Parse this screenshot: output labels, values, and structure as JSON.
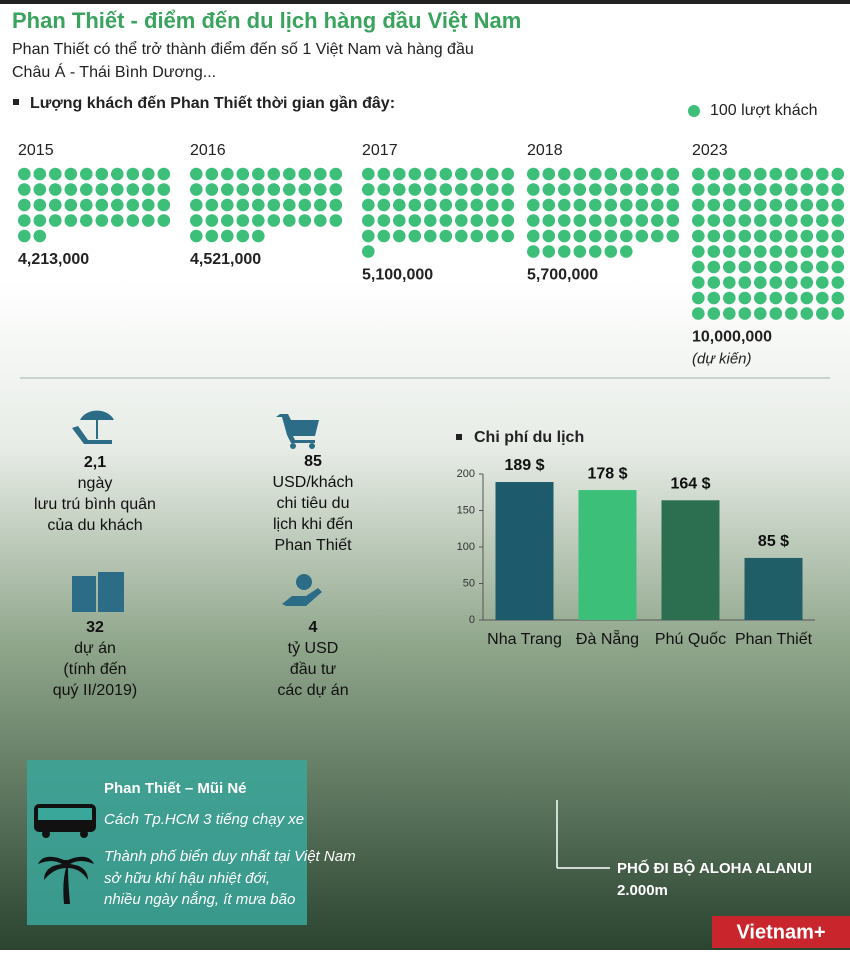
{
  "header": {
    "title": "Phan Thiết - điểm đến du lịch hàng đầu Việt Nam",
    "subtitle": [
      "Phan Thiết có thể trở thành điểm đến số 1 Việt Nam và hàng đầu",
      "Châu Á - Thái Bình Dương..."
    ]
  },
  "visitors": {
    "heading": "Lượng khách đến Phan Thiết thời gian gần đây:",
    "legend": "100 lượt khách",
    "color": "#3dbf7a",
    "years": [
      {
        "year": "2015",
        "value": {
          "value": 4213000,
          "label": "4,213,000"
        }
      },
      {
        "year": "2016",
        "value": {
          "value": 4521000,
          "label": "4,521,000"
        }
      },
      {
        "year": "2017",
        "value": {
          "value": 5100000,
          "label": "5,100,000"
        }
      },
      {
        "year": "2018",
        "value": {
          "value": 5700000,
          "label": "5,700,000"
        }
      },
      {
        "year": "2023",
        "value": {
          "value": 10000000,
          "label": "10,000,000"
        },
        "note": "(dự kiến)"
      }
    ]
  },
  "stats": [
    {
      "value": "2,1",
      "lines": [
        "ngày",
        "lưu trú bình quân",
        "của du khách"
      ]
    },
    {
      "value": "85",
      "lines": [
        "USD/khách",
        "chi tiêu du",
        "lịch khi đến",
        "Phan Thiết"
      ]
    },
    {
      "value": "32",
      "lines": [
        "dự án",
        "(tính đến",
        "quý II/2019)"
      ]
    },
    {
      "value": "4",
      "lines": [
        "tỷ USD",
        "đầu tư",
        "các dự án"
      ]
    }
  ],
  "chart_data": {
    "type": "bar",
    "title": "Chi phí du lịch",
    "categories": [
      "Nha Trang",
      "Đà Nẵng",
      "Phú Quốc",
      "Phan Thiết"
    ],
    "values": [
      189,
      178,
      164,
      85
    ],
    "value_labels": [
      "189 $",
      "178 $",
      "164 $",
      "85 $"
    ],
    "colors": [
      "#1d5a6c",
      "#3cbf79",
      "#2b6e50",
      "#1f5e66"
    ],
    "ylim": [
      0,
      200
    ],
    "yticks": [
      0,
      50,
      100,
      150,
      200
    ]
  },
  "info": {
    "title": "Phan Thiết – Mũi Né",
    "distance": "Cách Tp.HCM 3 tiếng chạy xe",
    "climate": [
      "Thành phố biển duy nhất tại Việt Nam",
      "sở hữu khí hậu nhiệt đới,",
      "nhiều ngày nắng, ít mưa bão"
    ]
  },
  "caption": {
    "title": "PHỐ ĐI BỘ ALOHA ALANUI",
    "length": "2.000m"
  },
  "brand": "Vietnam+"
}
